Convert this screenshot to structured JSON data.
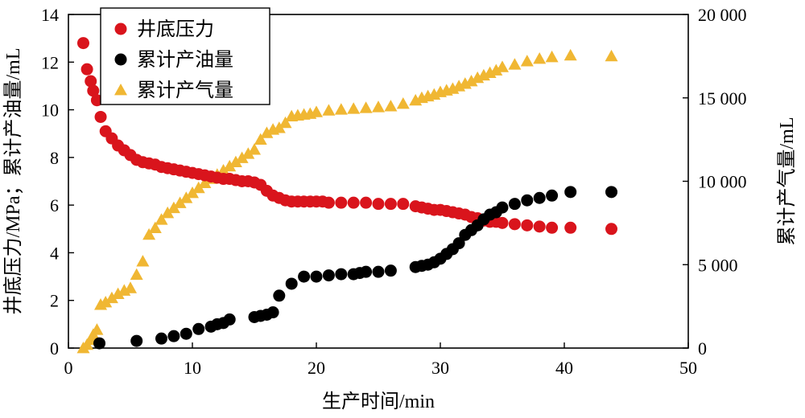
{
  "chart_data": {
    "type": "scatter",
    "title": "",
    "xlabel": "生产时间/min",
    "ylabel_left": "井底压力/MPa；累计产油量/mL",
    "ylabel_right": "累计产气量/mL",
    "xlim": [
      0,
      50
    ],
    "ylim_left": [
      0,
      14
    ],
    "ylim_right": [
      0,
      20000
    ],
    "x_ticks": [
      "0",
      "10",
      "20",
      "30",
      "40",
      "50"
    ],
    "y_left_ticks": [
      "0",
      "2",
      "4",
      "6",
      "8",
      "10",
      "12",
      "14"
    ],
    "y_right_ticks": [
      "0",
      "5 000",
      "10 000",
      "15 000",
      "20 000"
    ],
    "grid": false,
    "legend_position": "top-left",
    "series": [
      {
        "name": "井底压力",
        "axis": "left",
        "marker": "circle",
        "color": "#d9141c",
        "x": [
          1.2,
          1.5,
          1.8,
          2.0,
          2.3,
          2.6,
          3.0,
          3.5,
          4.0,
          4.5,
          5.0,
          5.5,
          6.0,
          6.5,
          7.0,
          7.5,
          8.0,
          8.5,
          9.0,
          9.5,
          10.0,
          10.5,
          11.0,
          11.5,
          12.0,
          12.5,
          13.0,
          13.5,
          14.0,
          14.5,
          15.0,
          15.5,
          16.0,
          16.5,
          17.0,
          17.5,
          18.0,
          18.5,
          19.0,
          19.5,
          20.0,
          20.5,
          21.0,
          22.0,
          23.0,
          24.0,
          25.0,
          26.0,
          27.0,
          28.0,
          28.5,
          29.0,
          29.5,
          30.0,
          30.5,
          31.0,
          31.5,
          32.0,
          32.5,
          33.0,
          33.5,
          34.0,
          34.5,
          35.0,
          36.0,
          37.0,
          38.0,
          39.0,
          40.5,
          43.8
        ],
        "y": [
          12.8,
          11.7,
          11.2,
          10.8,
          10.4,
          9.7,
          9.1,
          8.8,
          8.5,
          8.3,
          8.1,
          7.9,
          7.8,
          7.75,
          7.7,
          7.6,
          7.55,
          7.5,
          7.45,
          7.4,
          7.35,
          7.3,
          7.25,
          7.2,
          7.15,
          7.1,
          7.1,
          7.05,
          7.0,
          7.0,
          6.95,
          6.85,
          6.6,
          6.4,
          6.3,
          6.2,
          6.15,
          6.15,
          6.15,
          6.15,
          6.15,
          6.15,
          6.1,
          6.1,
          6.1,
          6.1,
          6.05,
          6.05,
          6.05,
          5.95,
          5.9,
          5.85,
          5.8,
          5.8,
          5.75,
          5.7,
          5.65,
          5.6,
          5.5,
          5.45,
          5.35,
          5.3,
          5.3,
          5.25,
          5.2,
          5.15,
          5.1,
          5.05,
          5.05,
          5.0
        ]
      },
      {
        "name": "累计产油量",
        "axis": "left",
        "marker": "circle",
        "color": "#000000",
        "x": [
          2.5,
          5.5,
          7.5,
          8.5,
          9.5,
          10.5,
          11.5,
          12.0,
          12.5,
          13.0,
          15.0,
          15.5,
          16.0,
          16.5,
          17.0,
          18.0,
          19.0,
          20.0,
          21.0,
          22.0,
          23.0,
          23.5,
          24.0,
          25.0,
          26.0,
          28.0,
          28.5,
          29.0,
          29.5,
          30.0,
          30.5,
          31.0,
          31.5,
          32.0,
          32.5,
          33.0,
          33.5,
          34.0,
          34.5,
          35.0,
          36.0,
          37.0,
          38.0,
          39.0,
          40.5,
          43.8
        ],
        "y": [
          0.2,
          0.3,
          0.4,
          0.5,
          0.6,
          0.8,
          0.9,
          1.0,
          1.05,
          1.2,
          1.3,
          1.35,
          1.4,
          1.5,
          2.2,
          2.7,
          3.0,
          3.0,
          3.05,
          3.1,
          3.1,
          3.15,
          3.2,
          3.2,
          3.25,
          3.4,
          3.45,
          3.5,
          3.6,
          3.75,
          3.95,
          4.15,
          4.4,
          4.75,
          4.95,
          5.15,
          5.4,
          5.6,
          5.7,
          5.9,
          6.05,
          6.2,
          6.3,
          6.4,
          6.55,
          6.55
        ]
      },
      {
        "name": "累计产气量",
        "axis": "right",
        "marker": "triangle",
        "color": "#f0b733",
        "x": [
          1.2,
          1.5,
          1.8,
          2.0,
          2.3,
          2.6,
          3.0,
          3.5,
          4.0,
          4.5,
          5.0,
          5.5,
          6.0,
          6.5,
          7.0,
          7.5,
          8.0,
          8.5,
          9.0,
          9.5,
          10.0,
          10.5,
          11.0,
          11.5,
          12.0,
          12.5,
          13.0,
          13.5,
          14.0,
          14.5,
          15.0,
          15.5,
          16.0,
          16.5,
          17.0,
          17.5,
          18.0,
          18.5,
          19.0,
          19.5,
          20.0,
          21.0,
          22.0,
          23.0,
          24.0,
          25.0,
          26.0,
          27.0,
          28.0,
          28.5,
          29.0,
          29.5,
          30.0,
          30.5,
          31.0,
          31.5,
          32.0,
          32.5,
          33.0,
          33.5,
          34.0,
          34.5,
          35.0,
          36.0,
          37.0,
          38.0,
          39.0,
          40.5,
          43.8
        ],
        "y": [
          0,
          200,
          500,
          800,
          1100,
          2600,
          2750,
          3000,
          3250,
          3450,
          3600,
          4400,
          5200,
          6800,
          7200,
          7700,
          8100,
          8400,
          8700,
          9000,
          9300,
          9600,
          9900,
          10150,
          10400,
          10650,
          10900,
          11150,
          11400,
          11650,
          11900,
          12500,
          12900,
          13100,
          13200,
          13500,
          13900,
          13950,
          14000,
          14050,
          14150,
          14250,
          14300,
          14350,
          14400,
          14450,
          14500,
          14650,
          14850,
          15000,
          15100,
          15200,
          15350,
          15450,
          15550,
          15700,
          15850,
          16000,
          16200,
          16350,
          16500,
          16650,
          16850,
          17000,
          17200,
          17350,
          17450,
          17550,
          17500
        ]
      }
    ]
  }
}
